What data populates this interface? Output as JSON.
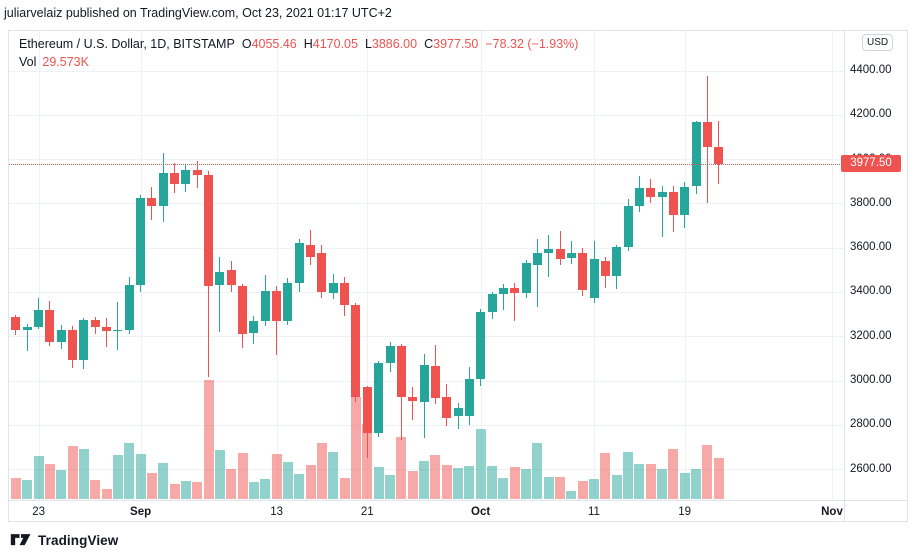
{
  "attribution": "juliarvelaiz published on TradingView.com, Oct 23, 2021 01:17 UTC+2",
  "toolbar": {
    "currency_button": "USD"
  },
  "header": {
    "symbol_title": "Ethereum / U.S. Dollar, 1D, BITSTAMP",
    "ohlc_fields": [
      {
        "label": "O",
        "value": "4055.46"
      },
      {
        "label": "H",
        "value": "4170.05"
      },
      {
        "label": "L",
        "value": "3886.00"
      },
      {
        "label": "C",
        "value": "3977.50"
      }
    ],
    "change_text": "−78.32 (−1.93%)",
    "volume_label": "Vol",
    "volume_value": "29.573K"
  },
  "price_axis": {
    "last_price": "3977.50",
    "last_price_value": 3977.5,
    "labels": [
      {
        "price": 4400,
        "text": "4400.00"
      },
      {
        "price": 4200,
        "text": "4200.00"
      },
      {
        "price": 4000,
        "text": "4000.00"
      },
      {
        "price": 3800,
        "text": "3800.00"
      },
      {
        "price": 3600,
        "text": "3600.00"
      },
      {
        "price": 3400,
        "text": "3400.00"
      },
      {
        "price": 3200,
        "text": "3200.00"
      },
      {
        "price": 3000,
        "text": "3000.00"
      },
      {
        "price": 2800,
        "text": "2800.00"
      },
      {
        "price": 2600,
        "text": "2600.00"
      }
    ]
  },
  "time_axis": {
    "ticks": [
      {
        "label": "23",
        "index": 2,
        "bold": false
      },
      {
        "label": "Sep",
        "index": 11,
        "bold": true
      },
      {
        "label": "13",
        "index": 23,
        "bold": false
      },
      {
        "label": "21",
        "index": 31,
        "bold": false
      },
      {
        "label": "Oct",
        "index": 41,
        "bold": true
      },
      {
        "label": "11",
        "index": 51,
        "bold": false
      },
      {
        "label": "19",
        "index": 59,
        "bold": false
      },
      {
        "label": "Nov",
        "index": 72,
        "bold": true
      }
    ]
  },
  "footer": {
    "logo_text": "TradingView"
  },
  "colors": {
    "up": "#26a69a",
    "down": "#ef5350",
    "volume_up": "rgba(38,166,154,0.5)",
    "volume_down": "rgba(239,83,80,0.5)",
    "grid": "#eef1f5",
    "axis_border": "#e0e3eb",
    "text": "#131722",
    "last_price_tag": "#ef5350"
  },
  "chart_data": {
    "type": "candlestick+volume",
    "title": "Ethereum / U.S. Dollar, 1D, BITSTAMP",
    "interval": "1D",
    "ylabel": "USD",
    "ylim": [
      2460,
      4574
    ],
    "grid": true,
    "last_close": 3977.5,
    "dates": [
      "Aug 21",
      "Aug 22",
      "Aug 23",
      "Aug 24",
      "Aug 25",
      "Aug 26",
      "Aug 27",
      "Aug 28",
      "Aug 29",
      "Aug 30",
      "Aug 31",
      "Sep 1",
      "Sep 2",
      "Sep 3",
      "Sep 4",
      "Sep 5",
      "Sep 6",
      "Sep 7",
      "Sep 8",
      "Sep 9",
      "Sep 10",
      "Sep 11",
      "Sep 12",
      "Sep 13",
      "Sep 14",
      "Sep 15",
      "Sep 16",
      "Sep 17",
      "Sep 18",
      "Sep 19",
      "Sep 20",
      "Sep 21",
      "Sep 22",
      "Sep 23",
      "Sep 24",
      "Sep 25",
      "Sep 26",
      "Sep 27",
      "Sep 28",
      "Sep 29",
      "Sep 30",
      "Oct 1",
      "Oct 2",
      "Oct 3",
      "Oct 4",
      "Oct 5",
      "Oct 6",
      "Oct 7",
      "Oct 8",
      "Oct 9",
      "Oct 10",
      "Oct 11",
      "Oct 12",
      "Oct 13",
      "Oct 14",
      "Oct 15",
      "Oct 16",
      "Oct 17",
      "Oct 18",
      "Oct 19",
      "Oct 20",
      "Oct 21",
      "Oct 22"
    ],
    "ohlc": [
      [
        3288,
        3298,
        3205,
        3227
      ],
      [
        3227,
        3254,
        3131,
        3242
      ],
      [
        3242,
        3374,
        3232,
        3320
      ],
      [
        3320,
        3359,
        3154,
        3172
      ],
      [
        3172,
        3249,
        3140,
        3228
      ],
      [
        3228,
        3247,
        3055,
        3092
      ],
      [
        3092,
        3282,
        3054,
        3273
      ],
      [
        3273,
        3286,
        3211,
        3243
      ],
      [
        3243,
        3282,
        3152,
        3222
      ],
      [
        3222,
        3355,
        3136,
        3227
      ],
      [
        3227,
        3468,
        3208,
        3433
      ],
      [
        3433,
        3836,
        3399,
        3825
      ],
      [
        3825,
        3875,
        3723,
        3786
      ],
      [
        3786,
        4027,
        3714,
        3936
      ],
      [
        3936,
        3984,
        3847,
        3887
      ],
      [
        3887,
        3975,
        3852,
        3952
      ],
      [
        3952,
        3990,
        3868,
        3928
      ],
      [
        3928,
        3946,
        3014,
        3425
      ],
      [
        3430,
        3556,
        3221,
        3488
      ],
      [
        3497,
        3542,
        3398,
        3429
      ],
      [
        3429,
        3437,
        3145,
        3212
      ],
      [
        3212,
        3290,
        3164,
        3270
      ],
      [
        3270,
        3475,
        3245,
        3405
      ],
      [
        3405,
        3428,
        3113,
        3270
      ],
      [
        3270,
        3465,
        3249,
        3440
      ],
      [
        3440,
        3640,
        3398,
        3620
      ],
      [
        3612,
        3678,
        3523,
        3560
      ],
      [
        3577,
        3610,
        3374,
        3400
      ],
      [
        3395,
        3480,
        3370,
        3440
      ],
      [
        3440,
        3468,
        3290,
        3340
      ],
      [
        3339,
        3350,
        2901,
        2924
      ],
      [
        2969,
        2977,
        2651,
        2761
      ],
      [
        2761,
        3088,
        2743,
        3077
      ],
      [
        3077,
        3175,
        3038,
        3155
      ],
      [
        3155,
        3165,
        2730,
        2925
      ],
      [
        2925,
        2970,
        2820,
        2905
      ],
      [
        2905,
        3120,
        2738,
        3072
      ],
      [
        3067,
        3160,
        2892,
        2922
      ],
      [
        2925,
        2985,
        2795,
        2830
      ],
      [
        2839,
        2900,
        2780,
        2875
      ],
      [
        2840,
        3060,
        2800,
        3007
      ],
      [
        3007,
        3322,
        2975,
        3310
      ],
      [
        3310,
        3398,
        3275,
        3390
      ],
      [
        3390,
        3437,
        3320,
        3420
      ],
      [
        3420,
        3440,
        3270,
        3395
      ],
      [
        3395,
        3545,
        3370,
        3529
      ],
      [
        3520,
        3641,
        3330,
        3575
      ],
      [
        3575,
        3655,
        3465,
        3593
      ],
      [
        3593,
        3677,
        3520,
        3550
      ],
      [
        3553,
        3630,
        3525,
        3577
      ],
      [
        3578,
        3598,
        3380,
        3410
      ],
      [
        3371,
        3630,
        3350,
        3551
      ],
      [
        3542,
        3560,
        3420,
        3474
      ],
      [
        3474,
        3610,
        3414,
        3605
      ],
      [
        3605,
        3820,
        3584,
        3790
      ],
      [
        3790,
        3925,
        3760,
        3868
      ],
      [
        3868,
        3910,
        3800,
        3827
      ],
      [
        3827,
        3880,
        3646,
        3852
      ],
      [
        3852,
        3880,
        3669,
        3746
      ],
      [
        3746,
        3895,
        3690,
        3876
      ],
      [
        3876,
        4174,
        3840,
        4167
      ],
      [
        4167,
        4376,
        3800,
        4055
      ],
      [
        4055.46,
        4170.05,
        3886,
        3977.5
      ]
    ],
    "volumes_k": [
      15.1,
      13.7,
      31.0,
      25.2,
      20.9,
      38.2,
      36.1,
      13.7,
      7.2,
      31.7,
      40.4,
      32.5,
      18.8,
      26.0,
      10.8,
      13.0,
      12.3,
      85.8,
      35.3,
      21.6,
      33.2,
      12.3,
      14.4,
      32.5,
      26.7,
      18.0,
      24.5,
      40.4,
      33.9,
      15.1,
      73.6,
      54.1,
      23.1,
      17.3,
      44.7,
      20.2,
      27.4,
      31.7,
      24.5,
      22.4,
      23.8,
      50.5,
      23.8,
      15.1,
      23.1,
      21.6,
      40.4,
      15.9,
      15.9,
      5.8,
      13.0,
      14.4,
      33.2,
      17.3,
      33.9,
      25.2,
      25.2,
      21.6,
      36.1,
      18.8,
      21.6,
      39.0,
      29.573
    ]
  }
}
